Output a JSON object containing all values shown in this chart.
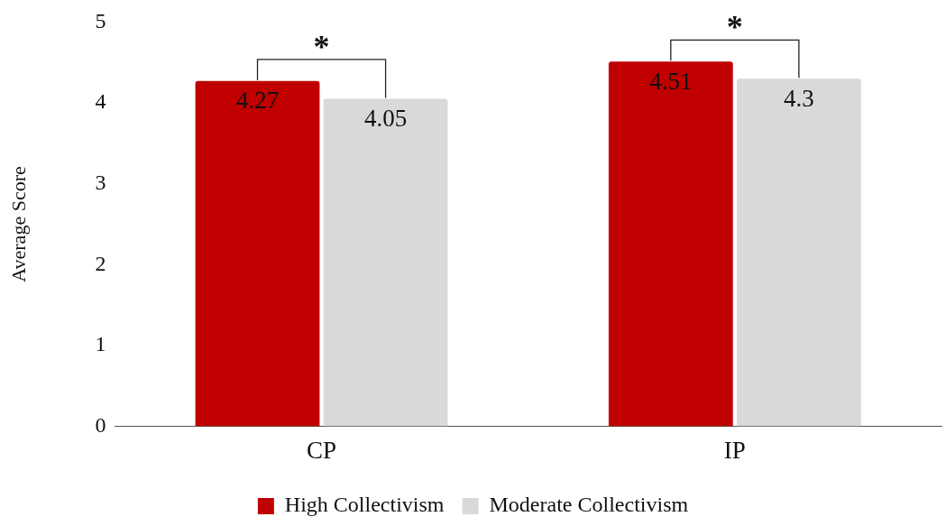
{
  "chart_data": {
    "type": "bar",
    "ylabel": "Average Score",
    "categories": [
      "CP",
      "IP"
    ],
    "series": [
      {
        "name": "High Collectivism",
        "color": "#c00000",
        "values": [
          4.27,
          4.51
        ]
      },
      {
        "name": "Moderate Collectivism",
        "color": "#d9d9d9",
        "values": [
          4.05,
          4.3
        ]
      }
    ],
    "ylim": [
      0,
      5
    ],
    "yticks": [
      0,
      1,
      2,
      3,
      4,
      5
    ],
    "grid": false,
    "legend": "bottom",
    "data_labels": true,
    "annotations": [
      "*",
      "*"
    ]
  }
}
